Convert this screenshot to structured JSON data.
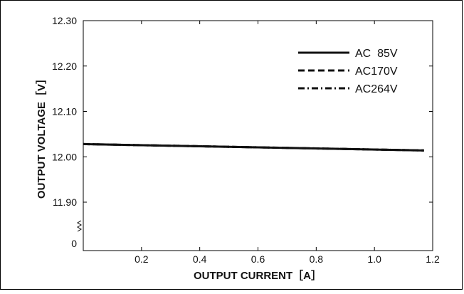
{
  "chart_data": {
    "type": "line",
    "title": "",
    "xlabel": "OUTPUT CURRENT［A］",
    "ylabel": "OUTPUT VOLTAGE［V］",
    "xlim": [
      0,
      1.2
    ],
    "ylim": [
      11.8,
      12.3
    ],
    "x_ticks": [
      0.2,
      0.4,
      0.6,
      0.8,
      1.0,
      1.2
    ],
    "x_tick_labels": [
      "0.2",
      "0.4",
      "0.6",
      "0.8",
      "1.0",
      "1.2"
    ],
    "y_ticks": [
      11.9,
      12.0,
      12.1,
      12.2,
      12.3
    ],
    "y_tick_labels": [
      "11.90",
      "12.00",
      "12.10",
      "12.20",
      "12.30"
    ],
    "y_origin_label": "0",
    "y_axis_break": true,
    "grid": false,
    "legend_position": "top-right",
    "series": [
      {
        "name": "AC  85V",
        "style": "solid",
        "x": [
          0,
          1.17
        ],
        "y": [
          12.028,
          12.014
        ]
      },
      {
        "name": "AC170V",
        "style": "dashed",
        "x": [
          0,
          1.17
        ],
        "y": [
          12.028,
          12.014
        ]
      },
      {
        "name": "AC264V",
        "style": "dashdot",
        "x": [
          0,
          1.17
        ],
        "y": [
          12.028,
          12.014
        ]
      }
    ]
  }
}
